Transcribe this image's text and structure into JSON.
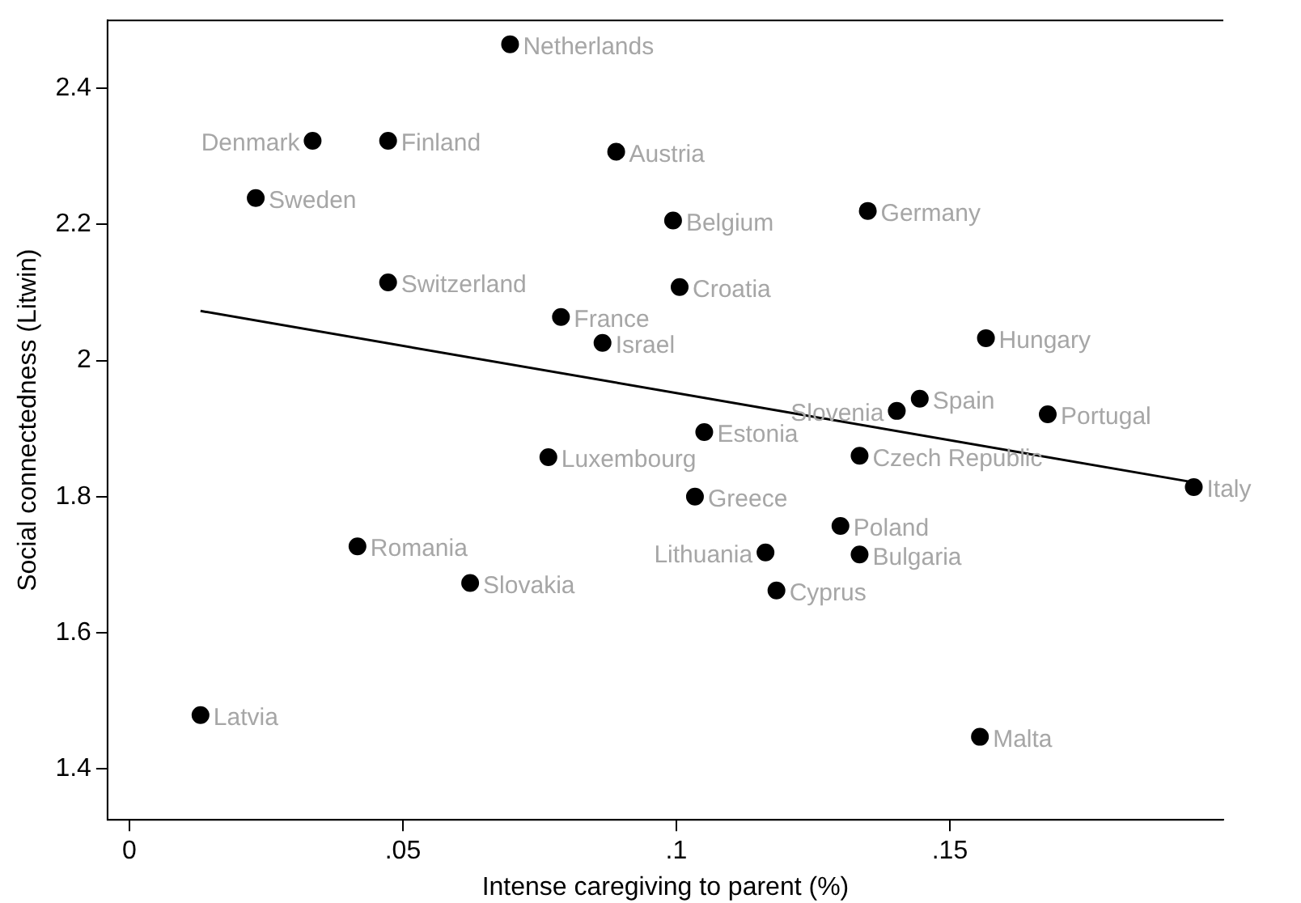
{
  "chart_data": {
    "type": "scatter",
    "xlabel": "Intense caregiving to parent (%)",
    "ylabel": "Social connectedness (Litwin)",
    "xlim": [
      -0.004,
      0.2
    ],
    "ylim": [
      1.325,
      2.5
    ],
    "xticks": [
      {
        "value": 0,
        "label": "0"
      },
      {
        "value": 0.05,
        "label": ".05"
      },
      {
        "value": 0.1,
        "label": ".1"
      },
      {
        "value": 0.15,
        "label": ".15"
      }
    ],
    "yticks": [
      1.4,
      1.6,
      1.8,
      2,
      2.2,
      2.4
    ],
    "grid": false,
    "legend": false,
    "series": [
      {
        "marker": "circle",
        "color": "#000000",
        "x": [
          0.0696,
          0.0335,
          0.0473,
          0.089,
          0.0231,
          0.0994,
          0.135,
          0.0473,
          0.1006,
          0.0789,
          0.0865,
          0.1566,
          0.1445,
          0.1679,
          0.1403,
          0.1051,
          0.0766,
          0.1335,
          0.1034,
          0.1946,
          0.0417,
          0.13,
          0.1163,
          0.1335,
          0.0623,
          0.1183,
          0.013,
          0.1555
        ],
        "values": [
          2.465,
          2.323,
          2.323,
          2.307,
          2.239,
          2.206,
          2.22,
          2.115,
          2.108,
          2.064,
          2.026,
          2.033,
          1.944,
          1.921,
          1.926,
          1.895,
          1.858,
          1.86,
          1.8,
          1.814,
          1.727,
          1.757,
          1.718,
          1.715,
          1.673,
          1.662,
          1.479,
          1.447
        ]
      },
      {
        "type": "line",
        "color": "#000000",
        "x": [
          0.013,
          0.1946
        ],
        "values": [
          2.073,
          1.821
        ]
      }
    ],
    "annotations": [
      {
        "text": "Netherlands",
        "x": 0.0696,
        "y": 2.465
      },
      {
        "text": "Denmark",
        "x": 0.0335,
        "y": 2.323
      },
      {
        "text": "Finland",
        "x": 0.0473,
        "y": 2.323
      },
      {
        "text": "Austria",
        "x": 0.089,
        "y": 2.307
      },
      {
        "text": "Sweden",
        "x": 0.0231,
        "y": 2.239
      },
      {
        "text": "Belgium",
        "x": 0.0994,
        "y": 2.206
      },
      {
        "text": "Germany",
        "x": 0.135,
        "y": 2.22
      },
      {
        "text": "Switzerland",
        "x": 0.0473,
        "y": 2.115
      },
      {
        "text": "Croatia",
        "x": 0.1006,
        "y": 2.108
      },
      {
        "text": "France",
        "x": 0.0789,
        "y": 2.064
      },
      {
        "text": "Israel",
        "x": 0.0865,
        "y": 2.026
      },
      {
        "text": "Hungary",
        "x": 0.1566,
        "y": 2.033
      },
      {
        "text": "Spain",
        "x": 0.1445,
        "y": 1.944
      },
      {
        "text": "Portugal",
        "x": 0.1679,
        "y": 1.921
      },
      {
        "text": "Slovenia",
        "x": 0.1403,
        "y": 1.926
      },
      {
        "text": "Estonia",
        "x": 0.1051,
        "y": 1.895
      },
      {
        "text": "Luxembourg",
        "x": 0.0766,
        "y": 1.858
      },
      {
        "text": "Czech Republic",
        "x": 0.1335,
        "y": 1.86
      },
      {
        "text": "Greece",
        "x": 0.1034,
        "y": 1.8
      },
      {
        "text": "Italy",
        "x": 0.1946,
        "y": 1.814
      },
      {
        "text": "Romania",
        "x": 0.0417,
        "y": 1.727
      },
      {
        "text": "Poland",
        "x": 0.13,
        "y": 1.757
      },
      {
        "text": "Lithuania",
        "x": 0.1163,
        "y": 1.718
      },
      {
        "text": "Bulgaria",
        "x": 0.1335,
        "y": 1.715
      },
      {
        "text": "Slovakia",
        "x": 0.0623,
        "y": 1.673
      },
      {
        "text": "Cyprus",
        "x": 0.1183,
        "y": 1.662
      },
      {
        "text": "Latvia",
        "x": 0.013,
        "y": 1.479
      },
      {
        "text": "Malta",
        "x": 0.1555,
        "y": 1.447
      }
    ]
  }
}
